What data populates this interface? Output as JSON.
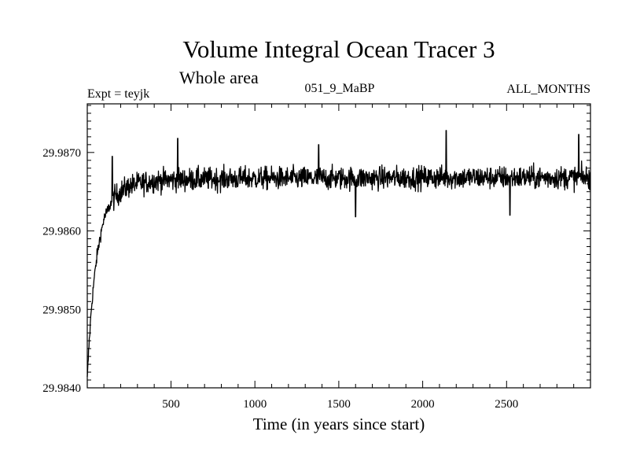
{
  "chart_data": {
    "type": "line",
    "title": "Volume Integral Ocean Tracer 3",
    "subtitle": "Whole area",
    "annotations": {
      "left": "Expt = teyjk",
      "center": "051_9_MaBP",
      "right": "ALL_MONTHS"
    },
    "xlabel": "Time (in years since start)",
    "ylabel": "",
    "xlim": [
      1,
      3000
    ],
    "ylim": [
      29.984,
      29.98762
    ],
    "x_ticks": [
      500,
      1000,
      1500,
      2000,
      2500
    ],
    "x_tick_labels": [
      "500",
      "1000",
      "1500",
      "2000",
      "2500"
    ],
    "y_ticks": [
      29.984,
      29.985,
      29.986,
      29.987
    ],
    "y_tick_labels": [
      "29.9840",
      "29.9850",
      "29.9860",
      "29.9870"
    ],
    "grid": false,
    "series": [
      {
        "name": "Volume Integral Ocean Tracer 3",
        "color": "#000000",
        "trend_points": {
          "x": [
            1,
            10,
            25,
            40,
            60,
            80,
            100,
            130,
            160,
            200,
            250,
            300,
            400,
            500,
            700,
            1000,
            1500,
            2000,
            2500,
            3000
          ],
          "y": [
            29.9841,
            29.9845,
            29.985,
            29.98535,
            29.9857,
            29.98595,
            29.98615,
            29.9863,
            29.98642,
            29.9865,
            29.98657,
            29.9866,
            29.98664,
            29.98665,
            29.98666,
            29.98667,
            29.98667,
            29.98668,
            29.98668,
            29.98668
          ]
        },
        "noise_amplitude": 0.00025,
        "peak_values": {
          "x": [
            150,
            540,
            1380,
            2140,
            2930
          ],
          "y": [
            29.98695,
            29.98718,
            29.9871,
            29.98728,
            29.98723
          ]
        },
        "trough_values": {
          "x": [
            1600,
            2520
          ],
          "y": [
            29.98618,
            29.9862
          ]
        }
      }
    ]
  }
}
